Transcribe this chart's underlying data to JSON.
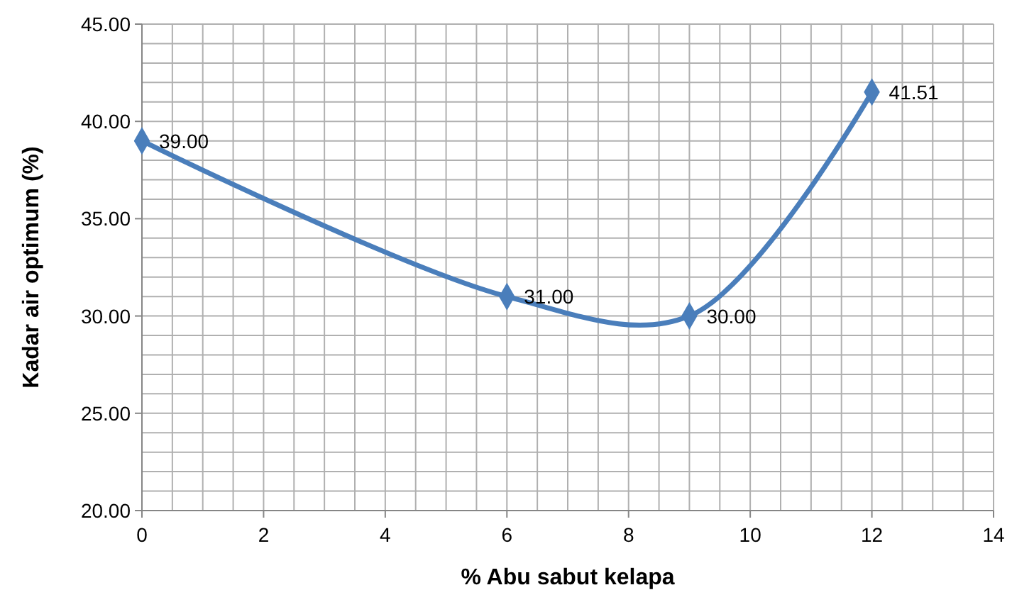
{
  "chart_data": {
    "type": "line",
    "xlabel": "% Abu sabut kelapa",
    "ylabel": "Kadar air optimum (%)",
    "x": [
      0,
      6,
      9,
      12
    ],
    "series": [
      {
        "color": "#4a7ebb",
        "values": [
          39,
          31,
          30,
          41.51
        ],
        "value_labels": [
          "39.00",
          "31.00",
          "30.00",
          "41.51"
        ]
      }
    ],
    "xlim": [
      0,
      14
    ],
    "xticks": [
      0,
      2,
      4,
      6,
      8,
      10,
      12,
      14
    ],
    "ylim": [
      20,
      45
    ],
    "yticks": [
      {
        "value": 20,
        "label": "20.00"
      },
      {
        "value": 25,
        "label": "25.00"
      },
      {
        "value": 30,
        "label": "30.00"
      },
      {
        "value": 35,
        "label": "35.00"
      },
      {
        "value": 40,
        "label": "40.00"
      },
      {
        "value": 45,
        "label": "45.00"
      }
    ],
    "grid": true,
    "marker": "diamond",
    "line_style": "solid"
  }
}
